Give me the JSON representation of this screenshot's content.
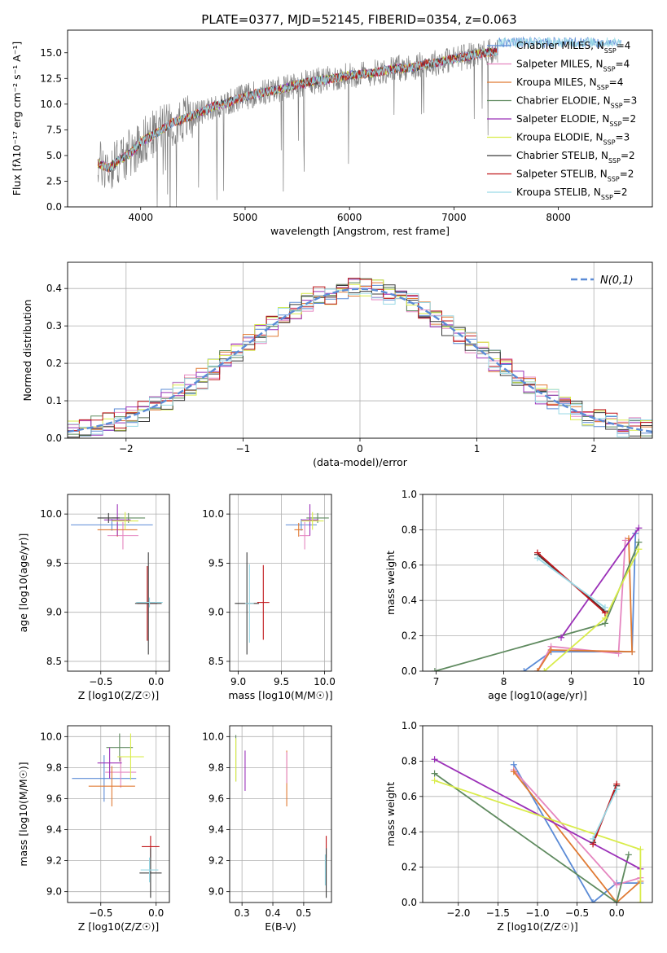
{
  "figure": {
    "title": "PLATE=0377, MJD=52145, FIBERID=0354, z=0.063"
  },
  "chart_data": [
    {
      "id": "spectrum",
      "type": "line",
      "xlabel": "wavelength [Angstrom, rest frame]",
      "ylabel": "Flux [fλ10⁻¹⁷ erg cm⁻² s⁻¹ A⁻¹]",
      "xlim": [
        3300,
        8900
      ],
      "ylim": [
        0,
        17.2
      ],
      "xticks": [
        4000,
        5000,
        6000,
        7000,
        8000
      ],
      "yticks": [
        0.0,
        2.5,
        5.0,
        7.5,
        10.0,
        12.5,
        15.0
      ],
      "grid": false,
      "legend_position": "right",
      "data_color": "#808080",
      "data_x": [
        3590,
        3700,
        3800,
        3900,
        4000,
        4100,
        4200,
        4300,
        4400,
        4500,
        4600,
        4700,
        4800,
        4900,
        5000,
        5100,
        5200,
        5300,
        5400,
        5500,
        5600,
        5700,
        5800,
        5900,
        6000,
        6100,
        6200,
        6300,
        6400,
        6500,
        6600,
        6700,
        6800,
        6900,
        7000,
        7100,
        7200,
        7300,
        7420
      ],
      "data_y": [
        4.2,
        3.8,
        4.6,
        5.2,
        6.3,
        6.9,
        7.5,
        8.2,
        8.5,
        8.9,
        9.3,
        9.8,
        10.0,
        10.4,
        10.7,
        11.0,
        11.2,
        11.4,
        11.6,
        11.9,
        12.1,
        12.3,
        12.4,
        12.6,
        12.8,
        12.9,
        13.0,
        13.2,
        13.4,
        13.5,
        13.6,
        13.8,
        14.0,
        14.2,
        14.4,
        14.6,
        14.8,
        15.0,
        15.1
      ],
      "series": [
        {
          "name": "Chabrier MILES, N_SSP=4",
          "color": "#5b8bd6",
          "n_ssp": 4
        },
        {
          "name": "Salpeter MILES, N_SSP=4",
          "color": "#e586c0",
          "n_ssp": 4
        },
        {
          "name": "Kroupa MILES, N_SSP=4",
          "color": "#e07a33",
          "n_ssp": 4
        },
        {
          "name": "Chabrier ELODIE, N_SSP=3",
          "color": "#5f8a5f",
          "n_ssp": 3
        },
        {
          "name": "Salpeter ELODIE, N_SSP=2",
          "color": "#9b30b8",
          "n_ssp": 2
        },
        {
          "name": "Kroupa ELODIE, N_SSP=3",
          "color": "#d9ec4a",
          "n_ssp": 3
        },
        {
          "name": "Chabrier STELIB, N_SSP=2",
          "color": "#3b3b3b",
          "n_ssp": 2
        },
        {
          "name": "Salpeter STELIB, N_SSP=2",
          "color": "#c0171b",
          "n_ssp": 2
        },
        {
          "name": "Kroupa STELIB, N_SSP=2",
          "color": "#9ad9e6",
          "n_ssp": 2
        }
      ]
    },
    {
      "id": "residuals",
      "type": "line",
      "xlabel": "(data-model)/error",
      "ylabel": "Normed distribution",
      "xlim": [
        -2.5,
        2.5
      ],
      "ylim": [
        0,
        0.47
      ],
      "xticks": [
        -2,
        -1,
        0,
        1,
        2
      ],
      "yticks": [
        0.0,
        0.1,
        0.2,
        0.3,
        0.4
      ],
      "grid": true,
      "legend_position": "top-right",
      "reference": {
        "name": "N(0,1)",
        "color": "#5b8bd6",
        "mu": 0,
        "sigma": 1
      }
    },
    {
      "id": "age-vs-Z",
      "type": "scatter",
      "xlabel": "Z [log10(Z/Z☉)]",
      "ylabel": "age  [log10(age/yr)]",
      "xlim": [
        -0.8,
        0.12
      ],
      "ylim": [
        8.4,
        10.2
      ],
      "xticks": [
        -0.5,
        0.0
      ],
      "yticks": [
        8.5,
        9.0,
        9.5,
        10.0
      ],
      "grid": true,
      "points": [
        {
          "x": -0.4,
          "y": 9.89,
          "xerr": 0.37,
          "yerr": 0.06,
          "color": "#5b8bd6"
        },
        {
          "x": -0.3,
          "y": 9.78,
          "xerr": 0.14,
          "yerr": 0.14,
          "color": "#e586c0"
        },
        {
          "x": -0.35,
          "y": 9.84,
          "xerr": 0.18,
          "yerr": 0.07,
          "color": "#e07a33"
        },
        {
          "x": -0.25,
          "y": 9.96,
          "xerr": 0.15,
          "yerr": 0.05,
          "color": "#5f8a5f"
        },
        {
          "x": -0.35,
          "y": 9.94,
          "xerr": 0.12,
          "yerr": 0.16,
          "color": "#9b30b8"
        },
        {
          "x": -0.28,
          "y": 9.93,
          "xerr": 0.12,
          "yerr": 0.09,
          "color": "#d9ec4a"
        },
        {
          "x": -0.43,
          "y": 9.96,
          "xerr": 0.1,
          "yerr": 0.05,
          "color": "#3b3b3b"
        },
        {
          "x": -0.08,
          "y": 9.09,
          "xerr": 0.09,
          "yerr": 0.38,
          "color": "#c0171b"
        },
        {
          "x": -0.07,
          "y": 9.09,
          "xerr": 0.12,
          "yerr": 0.52,
          "color": "#3b3b3b"
        },
        {
          "x": -0.06,
          "y": 9.1,
          "xerr": 0.12,
          "yerr": 0.05,
          "color": "#9ad9e6"
        }
      ]
    },
    {
      "id": "age-vs-mass",
      "type": "scatter",
      "xlabel": "mass [log10(M/M☉)]",
      "ylabel": "",
      "xlim": [
        8.9,
        10.08
      ],
      "ylim": [
        8.4,
        10.2
      ],
      "xticks": [
        9.0,
        9.5,
        10.0
      ],
      "yticks": [
        8.5,
        9.0,
        9.5,
        10.0
      ],
      "grid": true,
      "points": [
        {
          "x": 9.73,
          "y": 9.89,
          "xerr": 0.18,
          "yerr": 0.06,
          "color": "#5b8bd6"
        },
        {
          "x": 9.77,
          "y": 9.78,
          "xerr": 0.06,
          "yerr": 0.14,
          "color": "#e586c0"
        },
        {
          "x": 9.7,
          "y": 9.84,
          "xerr": 0.05,
          "yerr": 0.07,
          "color": "#e07a33"
        },
        {
          "x": 9.92,
          "y": 9.96,
          "xerr": 0.13,
          "yerr": 0.05,
          "color": "#5f8a5f"
        },
        {
          "x": 9.83,
          "y": 9.94,
          "xerr": 0.1,
          "yerr": 0.16,
          "color": "#9b30b8"
        },
        {
          "x": 9.86,
          "y": 9.93,
          "xerr": 0.13,
          "yerr": 0.09,
          "color": "#d9ec4a"
        },
        {
          "x": 9.1,
          "y": 9.09,
          "xerr": 0.14,
          "yerr": 0.52,
          "color": "#3b3b3b"
        },
        {
          "x": 9.29,
          "y": 9.1,
          "xerr": 0.07,
          "yerr": 0.38,
          "color": "#c0171b"
        },
        {
          "x": 9.13,
          "y": 9.09,
          "xerr": 0.05,
          "yerr": 0.4,
          "color": "#9ad9e6"
        }
      ]
    },
    {
      "id": "weight-vs-age",
      "type": "line",
      "xlabel": "age  [log10(age/yr)]",
      "ylabel": "mass weight",
      "xlim": [
        6.8,
        10.2
      ],
      "ylim": [
        0,
        1.0
      ],
      "xticks": [
        7,
        8,
        9,
        10
      ],
      "yticks": [
        0.0,
        0.2,
        0.4,
        0.6,
        0.8,
        1.0
      ],
      "grid": true,
      "series": [
        {
          "color": "#5b8bd6",
          "x": [
            8.3,
            8.7,
            9.9,
            9.95
          ],
          "y": [
            0.0,
            0.11,
            0.11,
            0.78
          ]
        },
        {
          "color": "#e586c0",
          "x": [
            8.5,
            8.7,
            9.7,
            9.8
          ],
          "y": [
            0.0,
            0.14,
            0.1,
            0.74
          ]
        },
        {
          "color": "#e07a33",
          "x": [
            8.5,
            8.7,
            9.9,
            9.85
          ],
          "y": [
            0.0,
            0.12,
            0.11,
            0.75
          ]
        },
        {
          "color": "#5f8a5f",
          "x": [
            6.98,
            9.5,
            10.0
          ],
          "y": [
            0.0,
            0.27,
            0.73
          ]
        },
        {
          "color": "#9b30b8",
          "x": [
            8.85,
            10.0
          ],
          "y": [
            0.19,
            0.81
          ]
        },
        {
          "color": "#d9ec4a",
          "x": [
            8.6,
            9.5,
            10.0
          ],
          "y": [
            0.0,
            0.3,
            0.69
          ]
        },
        {
          "color": "#3b3b3b",
          "x": [
            8.5,
            9.5
          ],
          "y": [
            0.66,
            0.34
          ]
        },
        {
          "color": "#c0171b",
          "x": [
            8.5,
            9.5
          ],
          "y": [
            0.67,
            0.33
          ]
        },
        {
          "color": "#9ad9e6",
          "x": [
            8.5,
            9.5
          ],
          "y": [
            0.64,
            0.36
          ]
        }
      ]
    },
    {
      "id": "mass-vs-Z",
      "type": "scatter",
      "xlabel": "Z [log10(Z/Z☉)]",
      "ylabel": "mass [log10(M/M☉)]",
      "xlim": [
        -0.8,
        0.12
      ],
      "ylim": [
        8.93,
        10.07
      ],
      "xticks": [
        -0.5,
        0.0
      ],
      "yticks": [
        9.0,
        9.2,
        9.4,
        9.6,
        9.8,
        10.0
      ],
      "grid": true,
      "points": [
        {
          "x": -0.47,
          "y": 9.73,
          "xerr": 0.29,
          "yerr": 0.15,
          "color": "#5b8bd6"
        },
        {
          "x": -0.32,
          "y": 9.77,
          "xerr": 0.14,
          "yerr": 0.1,
          "color": "#e586c0"
        },
        {
          "x": -0.4,
          "y": 9.68,
          "xerr": 0.21,
          "yerr": 0.13,
          "color": "#e07a33"
        },
        {
          "x": -0.33,
          "y": 9.93,
          "xerr": 0.12,
          "yerr": 0.09,
          "color": "#5f8a5f"
        },
        {
          "x": -0.42,
          "y": 9.83,
          "xerr": 0.11,
          "yerr": 0.1,
          "color": "#9b30b8"
        },
        {
          "x": -0.23,
          "y": 9.87,
          "xerr": 0.12,
          "yerr": 0.15,
          "color": "#d9ec4a"
        },
        {
          "x": -0.05,
          "y": 9.29,
          "xerr": 0.08,
          "yerr": 0.07,
          "color": "#c0171b"
        },
        {
          "x": -0.05,
          "y": 9.12,
          "xerr": 0.1,
          "yerr": 0.16,
          "color": "#3b3b3b"
        },
        {
          "x": -0.06,
          "y": 9.14,
          "xerr": 0.08,
          "yerr": 0.08,
          "color": "#9ad9e6"
        }
      ]
    },
    {
      "id": "mass-vs-ebv",
      "type": "scatter",
      "xlabel": "E(B-V)",
      "ylabel": "",
      "xlim": [
        0.26,
        0.59
      ],
      "ylim": [
        8.93,
        10.07
      ],
      "xticks": [
        0.3,
        0.4,
        0.5
      ],
      "yticks": [
        9.0,
        9.2,
        9.4,
        9.6,
        9.8,
        10.0
      ],
      "grid": true,
      "points": [
        {
          "x": 0.28,
          "y": 9.86,
          "xerr": 0.0,
          "yerr": 0.15,
          "color": "#5f8a5f"
        },
        {
          "x": 0.28,
          "y": 9.85,
          "xerr": 0.0,
          "yerr": 0.14,
          "color": "#d9ec4a"
        },
        {
          "x": 0.31,
          "y": 9.78,
          "xerr": 0.0,
          "yerr": 0.13,
          "color": "#9b30b8"
        },
        {
          "x": 0.445,
          "y": 9.73,
          "xerr": 0.0,
          "yerr": 0.18,
          "color": "#e07a33"
        },
        {
          "x": 0.445,
          "y": 9.8,
          "xerr": 0.0,
          "yerr": 0.1,
          "color": "#e586c0"
        },
        {
          "x": 0.573,
          "y": 9.29,
          "xerr": 0.0,
          "yerr": 0.07,
          "color": "#c0171b"
        },
        {
          "x": 0.573,
          "y": 9.12,
          "xerr": 0.0,
          "yerr": 0.16,
          "color": "#3b3b3b"
        },
        {
          "x": 0.57,
          "y": 9.14,
          "xerr": 0.0,
          "yerr": 0.1,
          "color": "#9ad9e6"
        }
      ]
    },
    {
      "id": "weight-vs-Z",
      "type": "line",
      "xlabel": "Z [log10(Z/Z☉)]",
      "ylabel": "mass weight",
      "xlim": [
        -2.45,
        0.45
      ],
      "ylim": [
        0,
        1.0
      ],
      "xticks": [
        -2.0,
        -1.5,
        -1.0,
        -0.5,
        0.0
      ],
      "yticks": [
        0.0,
        0.2,
        0.4,
        0.6,
        0.8,
        1.0
      ],
      "grid": true,
      "series": [
        {
          "color": "#5b8bd6",
          "x": [
            -1.3,
            -0.3,
            0.0,
            0.3
          ],
          "y": [
            0.78,
            0.0,
            0.11,
            0.11
          ]
        },
        {
          "color": "#e586c0",
          "x": [
            -1.3,
            0.0,
            0.3
          ],
          "y": [
            0.75,
            0.1,
            0.14
          ]
        },
        {
          "color": "#e07a33",
          "x": [
            -1.3,
            0.0,
            0.3
          ],
          "y": [
            0.74,
            0.0,
            0.12
          ]
        },
        {
          "color": "#5f8a5f",
          "x": [
            -2.3,
            0.0,
            0.15
          ],
          "y": [
            0.73,
            0.0,
            0.27
          ]
        },
        {
          "color": "#9b30b8",
          "x": [
            -2.3,
            0.3
          ],
          "y": [
            0.81,
            0.19
          ]
        },
        {
          "color": "#d9ec4a",
          "x": [
            -2.3,
            0.3,
            0.3
          ],
          "y": [
            0.69,
            0.3,
            0.0
          ]
        },
        {
          "color": "#3b3b3b",
          "x": [
            -0.3,
            0.0
          ],
          "y": [
            0.34,
            0.66
          ]
        },
        {
          "color": "#c0171b",
          "x": [
            -0.3,
            0.0
          ],
          "y": [
            0.33,
            0.67
          ]
        },
        {
          "color": "#9ad9e6",
          "x": [
            -0.3,
            0.0
          ],
          "y": [
            0.36,
            0.64
          ]
        }
      ]
    }
  ]
}
